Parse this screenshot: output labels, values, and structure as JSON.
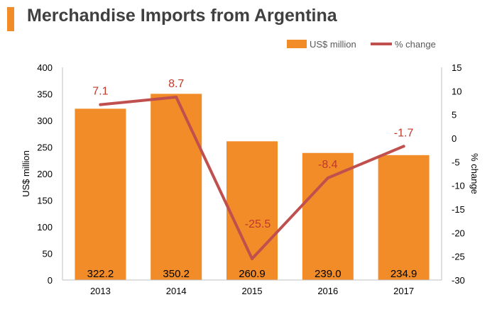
{
  "title": "Merchandise Imports from Argentina",
  "colors": {
    "accent": "#f28c28",
    "bar": "#f28c28",
    "line": "#c0504d",
    "line_label": "#c0392b",
    "title_bar": "#f28c28"
  },
  "chart_data": {
    "type": "bar",
    "title": "Merchandise Imports from Argentina",
    "categories": [
      "2013",
      "2014",
      "2015",
      "2016",
      "2017"
    ],
    "series": [
      {
        "name": "US$ million",
        "type": "bar",
        "axis": "left",
        "values": [
          322.2,
          350.2,
          260.9,
          239.0,
          234.9
        ],
        "labels": [
          "322.2",
          "350.2",
          "260.9",
          "239.0",
          "234.9"
        ]
      },
      {
        "name": "% change",
        "type": "line",
        "axis": "right",
        "values": [
          7.1,
          8.7,
          -25.5,
          -8.4,
          -1.7
        ],
        "labels": [
          "7.1",
          "8.7",
          "-25.5",
          "-8.4",
          "-1.7"
        ]
      }
    ],
    "ylabel": "US$ million",
    "ylim": [
      0,
      400
    ],
    "yticks": [
      "0",
      "50",
      "100",
      "150",
      "200",
      "250",
      "300",
      "350",
      "400"
    ],
    "y2label": "% change",
    "y2lim": [
      -30,
      15
    ],
    "y2ticks": [
      "-30",
      "-25",
      "-20",
      "-15",
      "-10",
      "-5",
      "0",
      "5",
      "10",
      "15"
    ],
    "grid": false,
    "legend": "top-right"
  }
}
